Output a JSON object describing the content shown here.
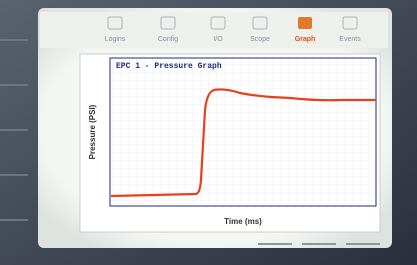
{
  "tabs": [
    "Logins",
    "Config",
    "I/O",
    "Scope",
    "Graph",
    "Events"
  ],
  "graph": {
    "title": "EPC 1 - Pressure Graph",
    "y_label": "Pressure (PSI)",
    "x_label": "Time (ms)"
  }
}
